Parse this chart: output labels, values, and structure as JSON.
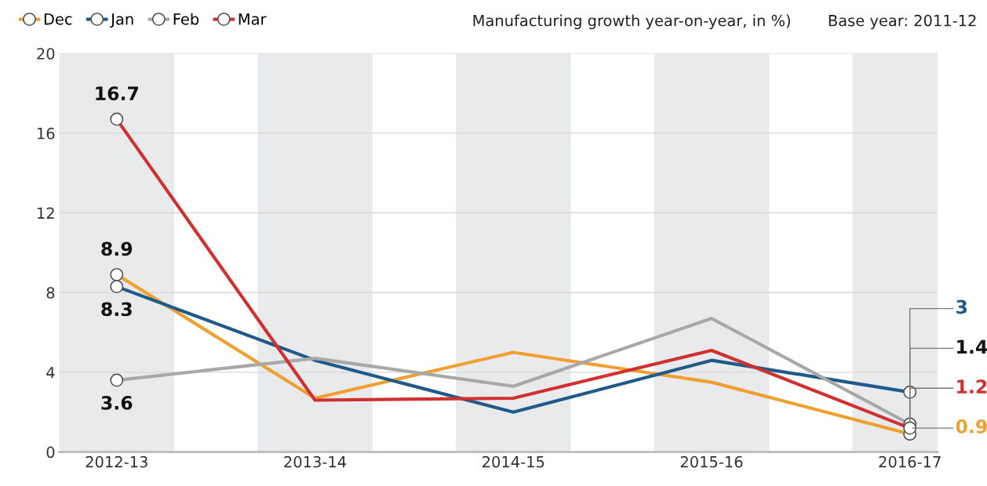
{
  "chart_data": {
    "type": "line",
    "title": "Manufacturing growth year-on-year, in %)",
    "annotations": [
      "Base year: 2011-12"
    ],
    "categories": [
      "2012-13",
      "2013-14",
      "2014-15",
      "2015-16",
      "2016-17"
    ],
    "series": [
      {
        "name": "Dec",
        "color": "#f0a030",
        "values": [
          8.9,
          2.7,
          5.0,
          3.5,
          0.9
        ],
        "value_labels": [
          "8.9",
          null,
          null,
          null,
          "0.9"
        ]
      },
      {
        "name": "Jan",
        "color": "#1f5a8a",
        "values": [
          8.3,
          4.6,
          2.0,
          4.6,
          3
        ],
        "value_labels": [
          "8.3",
          null,
          null,
          null,
          "3"
        ]
      },
      {
        "name": "Feb",
        "color": "#a8a8a8",
        "values": [
          3.6,
          4.7,
          3.3,
          6.7,
          1.4
        ],
        "value_labels": [
          "3.6",
          null,
          null,
          null,
          "1.4"
        ]
      },
      {
        "name": "Mar",
        "color": "#d03030",
        "values": [
          16.7,
          2.6,
          2.7,
          5.1,
          1.2
        ],
        "value_labels": [
          "16.7",
          null,
          null,
          null,
          "1.2"
        ]
      }
    ],
    "ylim": [
      0,
      20
    ],
    "yticks": [
      0,
      4,
      8,
      12,
      16,
      20
    ],
    "grid": "y",
    "legend": "top left",
    "line_style": "solid",
    "bands": [
      {
        "axis": "x",
        "from": "2012-13",
        "to": "2012-13",
        "color": "#e9eaec"
      },
      {
        "axis": "x",
        "from": "2013-14",
        "to": "2013-14",
        "color": "#e9eaec"
      },
      {
        "axis": "x",
        "from": "2014-15",
        "to": "2014-15",
        "color": "#e9eaec"
      },
      {
        "axis": "x",
        "from": "2015-16",
        "to": "2015-16",
        "color": "#e9eaec"
      },
      {
        "axis": "x",
        "from": "2016-17",
        "to": "2016-17",
        "color": "#e9eaec"
      }
    ]
  }
}
